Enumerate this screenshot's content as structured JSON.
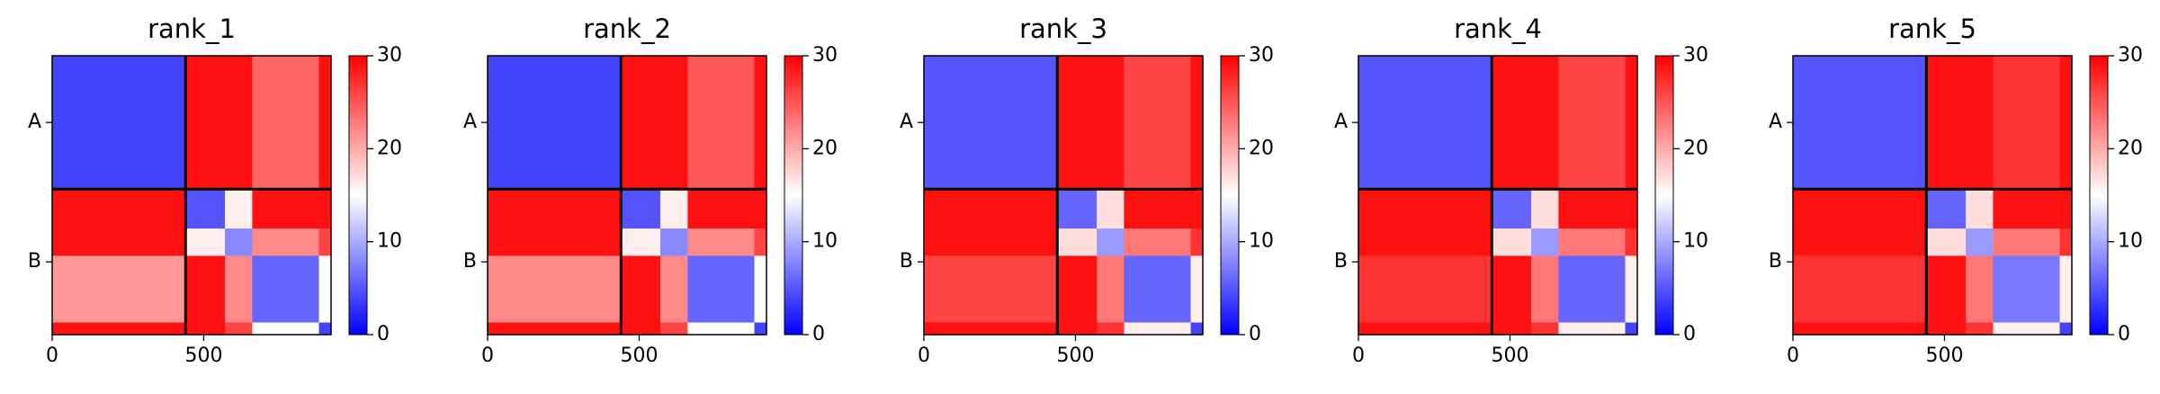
{
  "chart_data": [
    {
      "type": "heatmap",
      "title": "rank_1",
      "categories": [
        "A",
        "B"
      ],
      "xlim": [
        0,
        920
      ],
      "xticks": [
        0,
        500
      ],
      "chain_boundary": 440,
      "edges": [
        0,
        440,
        570,
        660,
        880,
        920
      ],
      "z": [
        [
          4,
          29,
          29,
          24,
          29
        ],
        [
          29,
          5,
          16,
          29,
          29
        ],
        [
          29,
          16,
          8,
          22,
          26
        ],
        [
          21,
          29,
          22,
          6,
          15
        ],
        [
          29,
          29,
          26,
          15,
          4
        ]
      ],
      "colormap": "bwr",
      "clim": [
        0,
        30
      ],
      "cticks": [
        0,
        10,
        20,
        30
      ]
    },
    {
      "type": "heatmap",
      "title": "rank_2",
      "categories": [
        "A",
        "B"
      ],
      "xlim": [
        0,
        920
      ],
      "xticks": [
        0,
        500
      ],
      "chain_boundary": 440,
      "edges": [
        0,
        440,
        570,
        660,
        880,
        920
      ],
      "z": [
        [
          4,
          29,
          29,
          25,
          29
        ],
        [
          29,
          5,
          16,
          29,
          29
        ],
        [
          29,
          16,
          8,
          22,
          26
        ],
        [
          22,
          29,
          22,
          6,
          15
        ],
        [
          29,
          29,
          26,
          15,
          4
        ]
      ],
      "colormap": "bwr",
      "clim": [
        0,
        30
      ],
      "cticks": [
        0,
        10,
        20,
        30
      ]
    },
    {
      "type": "heatmap",
      "title": "rank_3",
      "categories": [
        "A",
        "B"
      ],
      "xlim": [
        0,
        920
      ],
      "xticks": [
        0,
        500
      ],
      "chain_boundary": 440,
      "edges": [
        0,
        440,
        570,
        660,
        880,
        920
      ],
      "z": [
        [
          5,
          29,
          29,
          26,
          29
        ],
        [
          29,
          6,
          17,
          29,
          29
        ],
        [
          29,
          17,
          9,
          23,
          27
        ],
        [
          26,
          29,
          23,
          6,
          16
        ],
        [
          29,
          29,
          27,
          16,
          4
        ]
      ],
      "colormap": "bwr",
      "clim": [
        0,
        30
      ],
      "cticks": [
        0,
        10,
        20,
        30
      ]
    },
    {
      "type": "heatmap",
      "title": "rank_4",
      "categories": [
        "A",
        "B"
      ],
      "xlim": [
        0,
        920
      ],
      "xticks": [
        0,
        500
      ],
      "chain_boundary": 440,
      "edges": [
        0,
        440,
        570,
        660,
        880,
        920
      ],
      "z": [
        [
          5,
          29,
          29,
          26,
          29
        ],
        [
          29,
          6,
          17,
          29,
          29
        ],
        [
          29,
          17,
          9,
          23,
          27
        ],
        [
          27,
          29,
          23,
          6,
          16
        ],
        [
          29,
          29,
          27,
          16,
          4
        ]
      ],
      "colormap": "bwr",
      "clim": [
        0,
        30
      ],
      "cticks": [
        0,
        10,
        20,
        30
      ]
    },
    {
      "type": "heatmap",
      "title": "rank_5",
      "categories": [
        "A",
        "B"
      ],
      "xlim": [
        0,
        920
      ],
      "xticks": [
        0,
        500
      ],
      "chain_boundary": 440,
      "edges": [
        0,
        440,
        570,
        660,
        880,
        920
      ],
      "z": [
        [
          5,
          29,
          29,
          27,
          29
        ],
        [
          29,
          6,
          17,
          29,
          29
        ],
        [
          29,
          17,
          9,
          23,
          27
        ],
        [
          27,
          29,
          23,
          7,
          16
        ],
        [
          29,
          29,
          27,
          16,
          4
        ]
      ],
      "colormap": "bwr",
      "clim": [
        0,
        30
      ],
      "cticks": [
        0,
        10,
        20,
        30
      ]
    }
  ]
}
